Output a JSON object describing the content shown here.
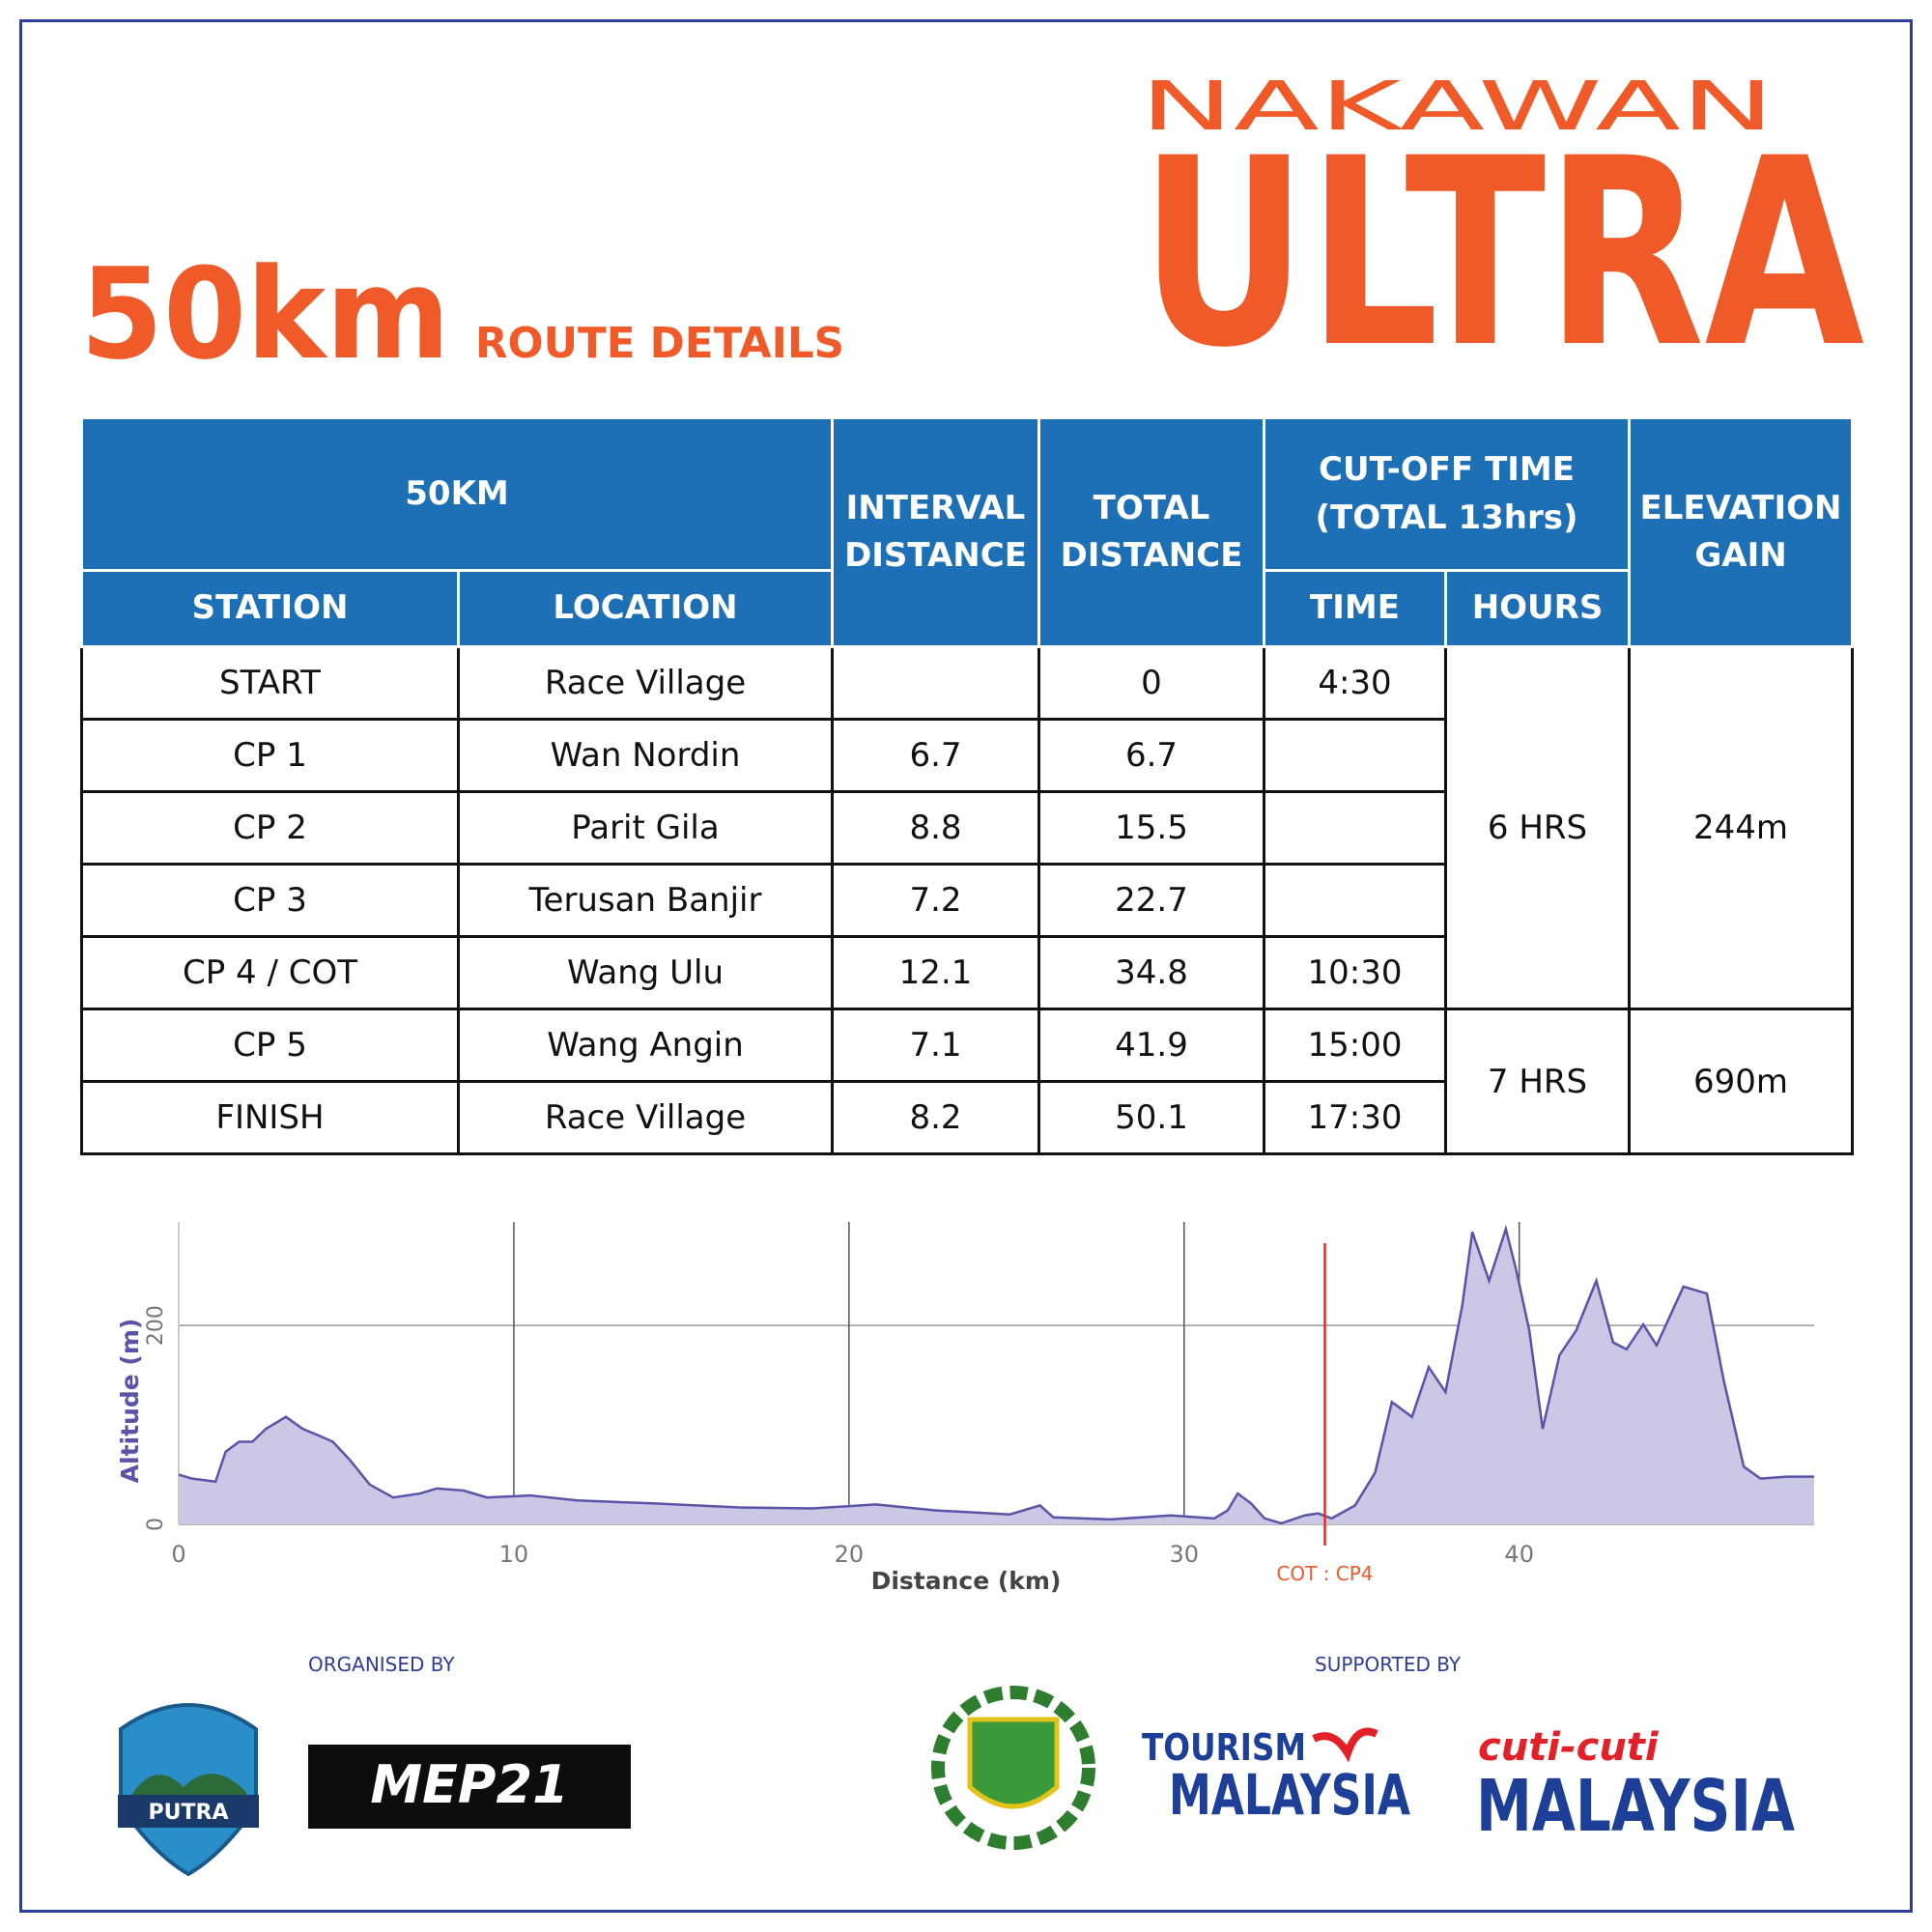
{
  "header": {
    "brand_top": "NAKAWAN",
    "brand_main": "ULTRA",
    "distance": "50km",
    "subtitle": "ROUTE DETAILS"
  },
  "table": {
    "header": {
      "route": "50KM",
      "station": "STATION",
      "location": "LOCATION",
      "interval": "INTERVAL\nDISTANCE",
      "total": "TOTAL\nDISTANCE",
      "cutoff": "CUT-OFF TIME\n(TOTAL  13hrs)",
      "time": "TIME",
      "hours": "HOURS",
      "elevation": "ELEVATION\nGAIN"
    },
    "rows": [
      [
        "START",
        "Race Village",
        null,
        "0",
        "4:30"
      ],
      [
        "CP 1",
        "Wan Nordin",
        "6.7",
        "6.7",
        null
      ],
      [
        "CP 2",
        "Parit Gila",
        "8.8",
        "15.5",
        null
      ],
      [
        "CP 3",
        "Terusan Banjir",
        "7.2",
        "22.7",
        null
      ],
      [
        "CP 4 / COT",
        "Wang Ulu",
        "12.1",
        "34.8",
        "10:30"
      ],
      [
        "CP 5",
        "Wang Angin",
        "7.1",
        "41.9",
        "15:00"
      ],
      [
        "FINISH",
        "Race Village",
        "8.2",
        "50.1",
        "17:30"
      ]
    ],
    "groups": [
      {
        "hours": "6 HRS",
        "elevation_gain": "244m"
      },
      {
        "hours": "7 HRS",
        "elevation_gain": "690m"
      }
    ]
  },
  "chart_data": {
    "type": "area",
    "x_label": "Distance (km)",
    "y_label": "Altitude (m)",
    "x": [
      0,
      0.4,
      1.1,
      1.4,
      1.8,
      2.2,
      2.6,
      3.2,
      3.7,
      4.2,
      4.6,
      5.1,
      5.7,
      6.4,
      7.2,
      7.7,
      8.5,
      9.2,
      10.5,
      11.9,
      14.2,
      16.7,
      18.9,
      20.8,
      22.6,
      24.8,
      25.7,
      26.1,
      27.8,
      29.6,
      30.9,
      31.3,
      31.6,
      32.0,
      32.4,
      32.9,
      33.6,
      34.0,
      34.4,
      35.1,
      35.7,
      36.2,
      36.8,
      37.3,
      37.8,
      38.3,
      38.6,
      39.1,
      39.6,
      39.9,
      40.3,
      40.7,
      41.2,
      41.7,
      42.3,
      42.8,
      43.2,
      43.7,
      44.1,
      44.9,
      45.6,
      46.1,
      46.7,
      47.2,
      48.0,
      48.8
    ],
    "values": [
      50,
      46,
      43,
      73,
      83,
      83,
      96,
      108,
      96,
      89,
      83,
      65,
      40,
      27,
      31,
      36,
      34,
      27,
      29,
      24,
      21,
      17,
      16,
      20,
      14,
      10,
      19,
      7,
      5,
      9,
      6,
      14,
      31,
      21,
      6,
      1,
      9,
      11,
      6,
      19,
      52,
      123,
      108,
      158,
      133,
      220,
      294,
      245,
      297,
      257,
      195,
      96,
      170,
      195,
      245,
      183,
      176,
      201,
      180,
      239,
      232,
      145,
      58,
      46,
      48,
      48
    ],
    "color": "#5b53a8",
    "fill_color": "#cbc8e6",
    "xlim": [
      0,
      48.8
    ],
    "ylim": [
      0,
      304
    ],
    "xticks": [
      0,
      10,
      20,
      30,
      40
    ],
    "yticks": [
      0,
      200
    ],
    "grid": true,
    "annotations": [
      {
        "x": 34.2,
        "label": "COT : CP4",
        "color": "#e0302a"
      }
    ]
  },
  "footer": {
    "organised_by": "ORGANISED BY",
    "supported_by": "SUPPORTED BY",
    "putra": "PUTRA",
    "mep": "MEP21",
    "tourism_top": "TOURISM",
    "tourism_bottom": "MALAYSIA",
    "cuti": "cuti-cuti",
    "cuti_bottom": "MALAYSIA"
  }
}
